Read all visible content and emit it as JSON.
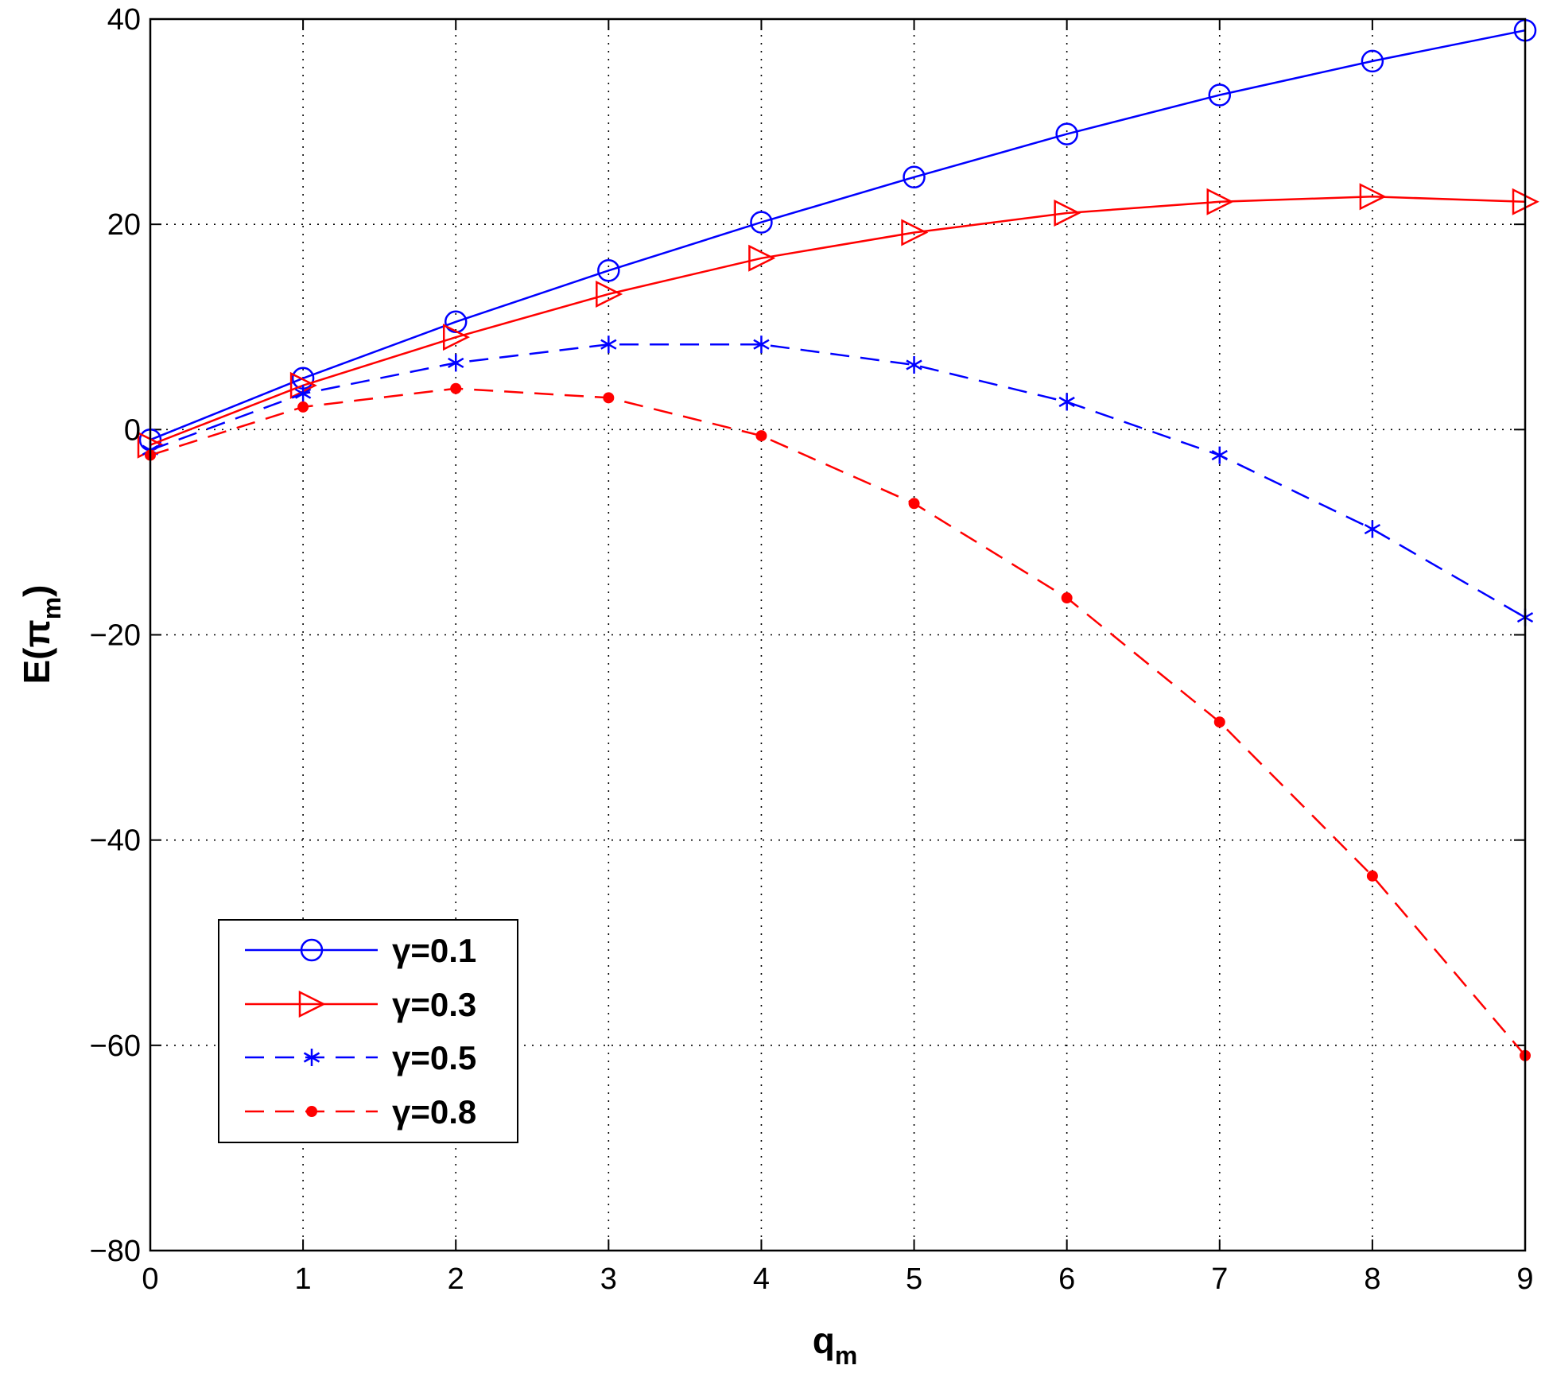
{
  "chart_data": {
    "type": "line",
    "title": "",
    "xlabel": {
      "main": "q",
      "sub": "m"
    },
    "ylabel": {
      "prefix": "E(π",
      "sub": "m",
      "suffix": ")"
    },
    "xlim": [
      0,
      9
    ],
    "ylim": [
      -80,
      40
    ],
    "xticks": [
      0,
      1,
      2,
      3,
      4,
      5,
      6,
      7,
      8,
      9
    ],
    "yticks": [
      -80,
      -60,
      -40,
      -20,
      0,
      20,
      40
    ],
    "ytick_labels": [
      "−80",
      "−60",
      "−40",
      "−20",
      "0",
      "20",
      "40"
    ],
    "grid": true,
    "legend_position": "bottom-left",
    "x": [
      0,
      1,
      2,
      3,
      4,
      5,
      6,
      7,
      8,
      9
    ],
    "series": [
      {
        "name": "γ=0.1",
        "color": "#0000ff",
        "line": "solid",
        "marker": "circle",
        "values": [
          -1,
          5,
          10.5,
          15.5,
          20.2,
          24.6,
          28.8,
          32.6,
          35.9,
          38.9
        ]
      },
      {
        "name": "γ=0.3",
        "color": "#ff0000",
        "line": "solid",
        "marker": "triangle-right",
        "values": [
          -1.5,
          4.3,
          9,
          13.2,
          16.7,
          19.2,
          21.1,
          22.2,
          22.7,
          22.2
        ]
      },
      {
        "name": "γ=0.5",
        "color": "#0000ff",
        "line": "dashed",
        "marker": "asterisk",
        "values": [
          -2,
          3.5,
          6.5,
          8.3,
          8.3,
          6.3,
          2.7,
          -2.5,
          -9.7,
          -18.3
        ]
      },
      {
        "name": "γ=0.8",
        "color": "#ff0000",
        "line": "dashed",
        "marker": "dot",
        "values": [
          -2.5,
          2.2,
          4,
          3.1,
          -0.6,
          -7.2,
          -16.4,
          -28.5,
          -43.5,
          -61
        ]
      }
    ]
  }
}
